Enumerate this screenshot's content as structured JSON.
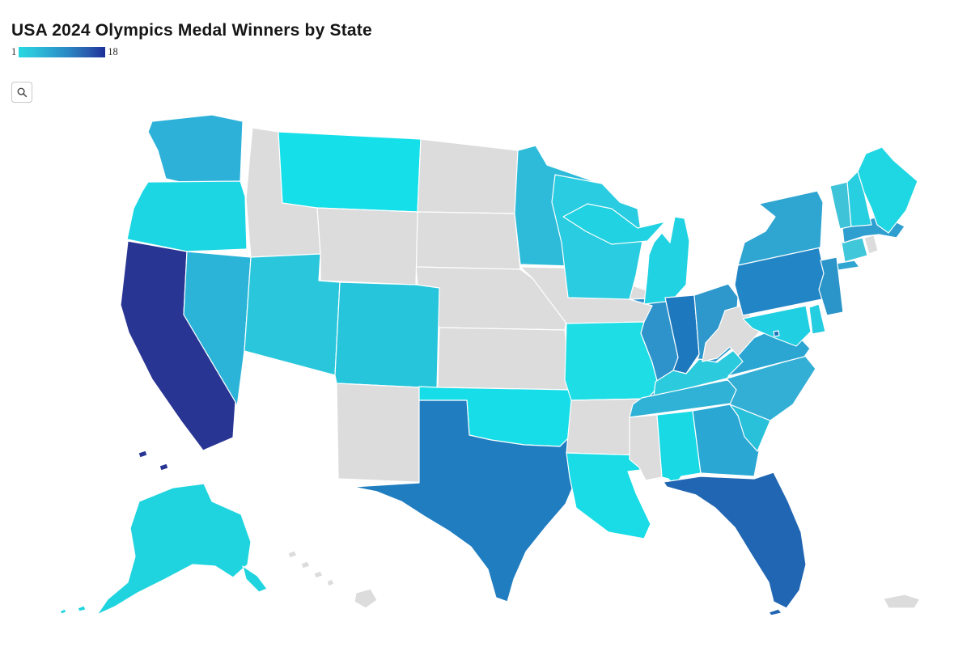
{
  "title": "USA 2024 Olympics Medal Winners by State",
  "legend": {
    "min_label": "1",
    "max_label": "18"
  },
  "controls": {
    "zoom_button_icon": "magnifier-icon"
  },
  "map": {
    "background": "#ffffff",
    "stroke_color": "#ffffff",
    "no_data_color": "#dcdcdc"
  },
  "chart_data": {
    "type": "choropleth-map",
    "title": "USA 2024 Olympics Medal Winners by State",
    "region": "United States (Albers composite with Alaska, Hawaii, Puerto Rico insets)",
    "color_scale": {
      "min": 1,
      "max": 18,
      "min_color": "#17dde8",
      "max_color": "#1c2f97"
    },
    "values_estimated_from_color": true,
    "states": [
      {
        "id": "CA",
        "name": "California",
        "value": 18,
        "fill": "#283593"
      },
      {
        "id": "FL",
        "name": "Florida",
        "value": 12,
        "fill": "#2166b2"
      },
      {
        "id": "TX",
        "name": "Texas",
        "value": 10,
        "fill": "#1f7dc0"
      },
      {
        "id": "IN",
        "name": "Indiana",
        "value": 10,
        "fill": "#1d78be"
      },
      {
        "id": "PA",
        "name": "Pennsylvania",
        "value": 9,
        "fill": "#2285c5"
      },
      {
        "id": "DC",
        "name": "District of Columbia",
        "value": 9,
        "fill": "#1b74bc"
      },
      {
        "id": "IL",
        "name": "Illinois",
        "value": 8,
        "fill": "#2e93ca"
      },
      {
        "id": "NJ",
        "name": "New Jersey",
        "value": 8,
        "fill": "#2b95c9"
      },
      {
        "id": "OH",
        "name": "Ohio",
        "value": 7,
        "fill": "#2e98cc"
      },
      {
        "id": "MA",
        "name": "Massachusetts",
        "value": 7,
        "fill": "#2f9fd0"
      },
      {
        "id": "NY",
        "name": "New York",
        "value": 7,
        "fill": "#2fa5d2"
      },
      {
        "id": "GA",
        "name": "Georgia",
        "value": 6,
        "fill": "#2aa8d3"
      },
      {
        "id": "VA",
        "name": "Virginia",
        "value": 6,
        "fill": "#2ba6d2"
      },
      {
        "id": "NC",
        "name": "North Carolina",
        "value": 5,
        "fill": "#33afd5"
      },
      {
        "id": "WA",
        "name": "Washington",
        "value": 5,
        "fill": "#2db1d9"
      },
      {
        "id": "TN",
        "name": "Tennessee",
        "value": 5,
        "fill": "#30b2d6"
      },
      {
        "id": "NV",
        "name": "Nevada",
        "value": 5,
        "fill": "#2cb4d8"
      },
      {
        "id": "MN",
        "name": "Minnesota",
        "value": 4,
        "fill": "#2dbbd9"
      },
      {
        "id": "SC",
        "name": "South Carolina",
        "value": 4,
        "fill": "#29c1da"
      },
      {
        "id": "CT",
        "name": "Connecticut",
        "value": 3,
        "fill": "#40c7da"
      },
      {
        "id": "VT",
        "name": "Vermont",
        "value": 3,
        "fill": "#3fc3d9"
      },
      {
        "id": "UT",
        "name": "Utah",
        "value": 3,
        "fill": "#2ac7dc"
      },
      {
        "id": "CO",
        "name": "Colorado",
        "value": 3,
        "fill": "#27c5db"
      },
      {
        "id": "AZ",
        "name": "Arizona",
        "value": 3,
        "fill": "#23cbdf"
      },
      {
        "id": "KY",
        "name": "Kentucky",
        "value": 3,
        "fill": "#2ccadd"
      },
      {
        "id": "WI",
        "name": "Wisconsin",
        "value": 2,
        "fill": "#29cce0"
      },
      {
        "id": "MD",
        "name": "Maryland",
        "value": 2,
        "fill": "#20cfe1"
      },
      {
        "id": "NH",
        "name": "New Hampshire",
        "value": 2,
        "fill": "#28cfe0"
      },
      {
        "id": "MI",
        "name": "Michigan",
        "value": 2,
        "fill": "#20d2e2"
      },
      {
        "id": "DE",
        "name": "Delaware",
        "value": 2,
        "fill": "#25cde0"
      },
      {
        "id": "MO",
        "name": "Missouri",
        "value": 1,
        "fill": "#1fdde4"
      },
      {
        "id": "OR",
        "name": "Oregon",
        "value": 1,
        "fill": "#1cd7e3"
      },
      {
        "id": "ME",
        "name": "Maine",
        "value": 1,
        "fill": "#1fd7e3"
      },
      {
        "id": "AK",
        "name": "Alaska",
        "value": 1,
        "fill": "#1fd4de"
      },
      {
        "id": "MT",
        "name": "Montana",
        "value": 1,
        "fill": "#15dfe9"
      },
      {
        "id": "OK",
        "name": "Oklahoma",
        "value": 1,
        "fill": "#17dde8"
      },
      {
        "id": "LA",
        "name": "Louisiana",
        "value": 1,
        "fill": "#19dce6"
      },
      {
        "id": "AL",
        "name": "Alabama",
        "value": 1,
        "fill": "#18d9e4"
      },
      {
        "id": "ID",
        "name": "Idaho",
        "value": null,
        "fill": null
      },
      {
        "id": "WY",
        "name": "Wyoming",
        "value": null,
        "fill": null
      },
      {
        "id": "ND",
        "name": "North Dakota",
        "value": null,
        "fill": null
      },
      {
        "id": "SD",
        "name": "South Dakota",
        "value": null,
        "fill": null
      },
      {
        "id": "NE",
        "name": "Nebraska",
        "value": null,
        "fill": null
      },
      {
        "id": "KS",
        "name": "Kansas",
        "value": null,
        "fill": null
      },
      {
        "id": "IA",
        "name": "Iowa",
        "value": null,
        "fill": null
      },
      {
        "id": "NM",
        "name": "New Mexico",
        "value": null,
        "fill": null
      },
      {
        "id": "AR",
        "name": "Arkansas",
        "value": null,
        "fill": null
      },
      {
        "id": "MS",
        "name": "Mississippi",
        "value": null,
        "fill": null
      },
      {
        "id": "WV",
        "name": "West Virginia",
        "value": null,
        "fill": null
      },
      {
        "id": "RI",
        "name": "Rhode Island",
        "value": null,
        "fill": null
      },
      {
        "id": "HI",
        "name": "Hawaii",
        "value": null,
        "fill": null
      },
      {
        "id": "PR",
        "name": "Puerto Rico",
        "value": null,
        "fill": null
      }
    ]
  }
}
